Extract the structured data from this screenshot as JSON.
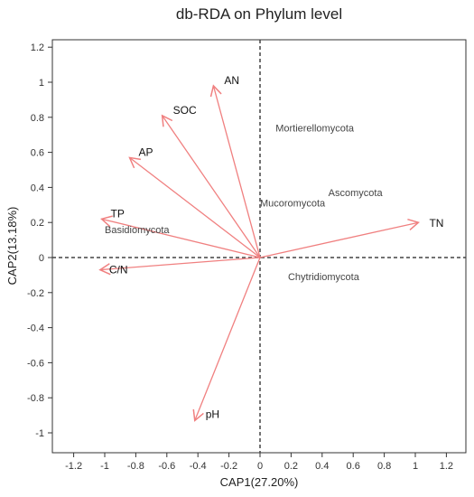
{
  "chart_data": {
    "type": "scatter",
    "title": "db-RDA on Phylum level",
    "xlabel": "CAP1(27.20%)",
    "ylabel": "CAP2(13.18%)",
    "xlim": [
      -1.35,
      1.35
    ],
    "ylim": [
      -1.1,
      1.2
    ],
    "xticks": [
      -1.2,
      -1,
      -0.8,
      -0.6,
      -0.4,
      -0.2,
      0,
      0.2,
      0.4,
      0.6,
      0.8,
      1,
      1.2
    ],
    "xtick_labels": [
      "-1.2",
      "-1",
      "-0.8",
      "-0.6",
      "-0.4",
      "-0.2",
      "0",
      "0.2",
      "0.4",
      "0.6",
      "0.8",
      "1",
      "1.2"
    ],
    "yticks": [
      1.2,
      1,
      0.8,
      0.6,
      0.4,
      0.2,
      0,
      -0.2,
      -0.4,
      -0.6,
      -0.8,
      -1
    ],
    "ytick_labels": [
      "1.2",
      "1",
      "0.8",
      "0.6",
      "0.4",
      "0.2",
      "0",
      "-0.2",
      "-0.4",
      "-0.6",
      "-0.8",
      "-1"
    ],
    "grid": false,
    "zero_lines": true,
    "arrow_color": "#f08080",
    "vectors": [
      {
        "name": "AN",
        "x": -0.3,
        "y": 0.98
      },
      {
        "name": "SOC",
        "x": -0.63,
        "y": 0.81
      },
      {
        "name": "AP",
        "x": -0.84,
        "y": 0.57
      },
      {
        "name": "TP",
        "x": -1.02,
        "y": 0.22
      },
      {
        "name": "C/N",
        "x": -1.03,
        "y": -0.07
      },
      {
        "name": "TN",
        "x": 1.02,
        "y": 0.2
      },
      {
        "name": "pH",
        "x": -0.42,
        "y": -0.93
      }
    ],
    "taxa": [
      {
        "name": "Mortierellomycota",
        "x": 0.1,
        "y": 0.72
      },
      {
        "name": "Ascomycota",
        "x": 0.44,
        "y": 0.35
      },
      {
        "name": "Mucoromycota",
        "x": 0.0,
        "y": 0.29
      },
      {
        "name": "Basidiomycota",
        "x": -1.0,
        "y": 0.14
      },
      {
        "name": "Chytridiomycota",
        "x": 0.18,
        "y": -0.13
      }
    ]
  }
}
